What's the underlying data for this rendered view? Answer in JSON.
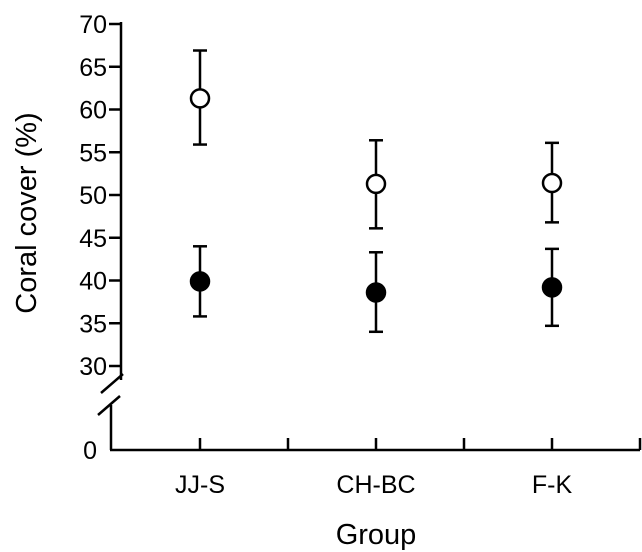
{
  "chart_data": {
    "type": "scatter",
    "title": "",
    "xlabel": "Group",
    "ylabel": "Coral cover (%)",
    "categories": [
      "JJ-S",
      "CH-BC",
      "F-K"
    ],
    "y_ticks": [
      0,
      30,
      35,
      40,
      45,
      50,
      55,
      60,
      65,
      70
    ],
    "ylim": [
      0,
      70
    ],
    "y_axis_break": [
      0,
      30
    ],
    "grid": false,
    "legend": "none",
    "series": [
      {
        "marker": "open-circle",
        "color": "#000000",
        "values": [
          61.3,
          51.3,
          51.4
        ],
        "error_low": [
          55.9,
          46.1,
          46.8
        ],
        "error_high": [
          66.9,
          56.4,
          56.1
        ]
      },
      {
        "marker": "filled-circle",
        "color": "#000000",
        "values": [
          39.9,
          38.6,
          39.2
        ],
        "error_low": [
          35.8,
          34.0,
          34.7
        ],
        "error_high": [
          44.0,
          43.3,
          43.7
        ]
      }
    ]
  }
}
